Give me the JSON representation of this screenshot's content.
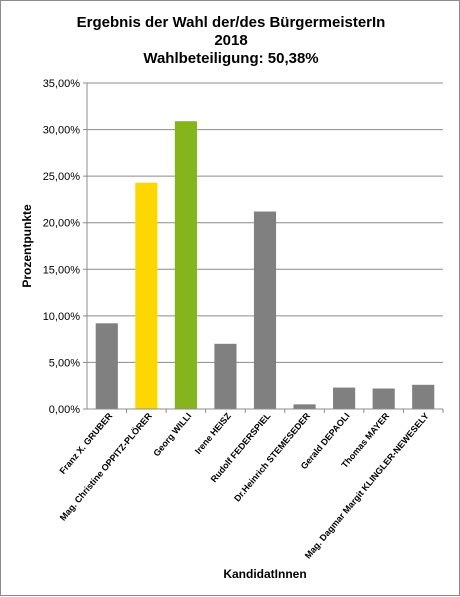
{
  "chart_data": {
    "type": "bar",
    "title": [
      "Ergebnis der Wahl der/des BürgermeisterIn",
      "2018",
      "Wahlbeteiligung: 50,38%"
    ],
    "xlabel": "KandidatInnen",
    "ylabel": "Prozentpunkte",
    "ylim": [
      0,
      35
    ],
    "yticks": [
      "0,00%",
      "5,00%",
      "10,00%",
      "15,00%",
      "20,00%",
      "25,00%",
      "30,00%",
      "35,00%"
    ],
    "categories": [
      "Franz X. GRUBER",
      "Mag. Christine OPPITZ-PLÖRER",
      "Georg WILLI",
      "Irene HEISZ",
      "Rudolf FEDERSPIEL",
      "Dr.Heinrich STEMESEDER",
      "Gerald DEPAOLI",
      "Thomas MAYER",
      "Mag. Dagmar Margit KLINGLER-NEWESELY"
    ],
    "values": [
      9.2,
      24.3,
      30.9,
      7.0,
      21.2,
      0.5,
      2.3,
      2.2,
      2.6
    ],
    "colors": [
      "#808080",
      "#ffd700",
      "#85b41c",
      "#808080",
      "#808080",
      "#808080",
      "#808080",
      "#808080",
      "#808080"
    ],
    "grid": true,
    "legend": "none"
  }
}
